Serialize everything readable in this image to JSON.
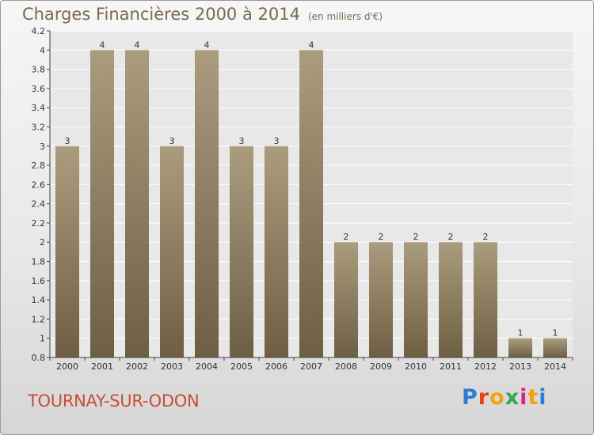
{
  "title": "Charges Financières 2000 à 2014",
  "subtitle": "(en milliers d'€)",
  "location": "TOURNAY-SUR-ODON",
  "brand": {
    "letters": [
      "P",
      "r",
      "o",
      "x",
      "i",
      "t",
      "i"
    ],
    "colors": [
      "#2a7fd4",
      "#e8401c",
      "#f3a20c",
      "#2fa84f",
      "#d9238d",
      "#f3a20c",
      "#2a7fd4"
    ]
  },
  "colors": {
    "bar_top": "#ab9c7e",
    "bar_bottom": "#6e5e43",
    "plot_bg": "#e8e8e8",
    "grid": "#ffffff",
    "title": "#7a6a4f",
    "location": "#c84e37"
  },
  "chart_data": {
    "type": "bar",
    "categories": [
      "2000",
      "2001",
      "2002",
      "2003",
      "2004",
      "2005",
      "2006",
      "2007",
      "2008",
      "2009",
      "2010",
      "2011",
      "2012",
      "2013",
      "2014"
    ],
    "values": [
      3,
      4,
      4,
      3,
      4,
      3,
      3,
      4,
      2,
      2,
      2,
      2,
      2,
      1,
      1
    ],
    "value_labels": [
      "3",
      "4",
      "4",
      "3",
      "4",
      "3",
      "3",
      "4",
      "2",
      "2",
      "2",
      "2",
      "2",
      "1",
      "1"
    ],
    "ylim": [
      0.8,
      4.2
    ],
    "yticks": [
      0.8,
      1,
      1.2,
      1.4,
      1.6,
      1.8,
      2,
      2.2,
      2.4,
      2.6,
      2.8,
      3,
      3.2,
      3.4,
      3.6,
      3.8,
      4,
      4.2
    ],
    "ytick_labels": [
      "0.8",
      "1",
      "1.2",
      "1.4",
      "1.6",
      "1.8",
      "2",
      "2.2",
      "2.4",
      "2.6",
      "2.8",
      "3",
      "3.2",
      "3.4",
      "3.6",
      "3.8",
      "4",
      "4.2"
    ],
    "grid": true,
    "xlabel": "",
    "ylabel": ""
  }
}
